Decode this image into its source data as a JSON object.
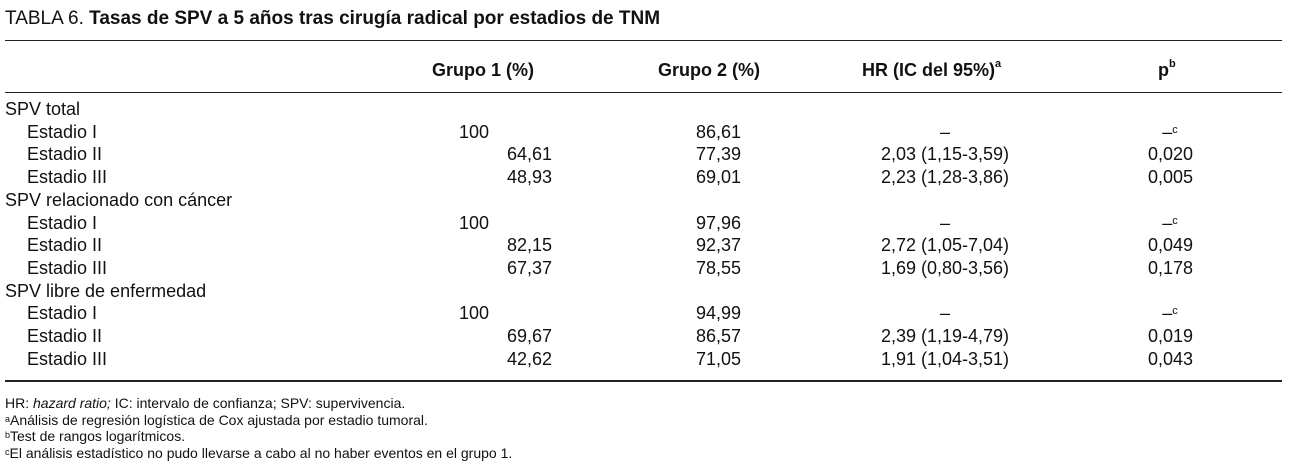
{
  "caption": {
    "label": "TABLA 6.",
    "title": "Tasas de SPV a 5 años tras cirugía radical por estadios de TNM"
  },
  "headers": {
    "grupo1": "Grupo 1 (%)",
    "grupo2": "Grupo 2 (%)",
    "hr": "HR (IC del 95%)",
    "hr_sup": "a",
    "p": "p",
    "p_sup": "b"
  },
  "groups": [
    {
      "label": "SPV total",
      "rows": [
        {
          "stage": "Estadio I",
          "g1": "100",
          "g2": "86,61",
          "hr": "–",
          "p": "–",
          "p_sup": "c"
        },
        {
          "stage": "Estadio II",
          "g1": "64,61",
          "g2": "77,39",
          "hr": "2,03 (1,15-3,59)",
          "p": "0,020"
        },
        {
          "stage": "Estadio III",
          "g1": "48,93",
          "g2": "69,01",
          "hr": "2,23 (1,28-3,86)",
          "p": "0,005"
        }
      ]
    },
    {
      "label": "SPV relacionado con cáncer",
      "rows": [
        {
          "stage": "Estadio I",
          "g1": "100",
          "g2": "97,96",
          "hr": "–",
          "p": "–",
          "p_sup": "c"
        },
        {
          "stage": "Estadio II",
          "g1": "82,15",
          "g2": "92,37",
          "hr": "2,72 (1,05-7,04)",
          "p": "0,049"
        },
        {
          "stage": "Estadio III",
          "g1": "67,37",
          "g2": "78,55",
          "hr": "1,69 (0,80-3,56)",
          "p": "0,178"
        }
      ]
    },
    {
      "label": "SPV libre de enfermedad",
      "rows": [
        {
          "stage": "Estadio I",
          "g1": "100",
          "g2": "94,99",
          "hr": "–",
          "p": "–",
          "p_sup": "c"
        },
        {
          "stage": "Estadio II",
          "g1": "69,67",
          "g2": "86,57",
          "hr": "2,39 (1,19-4,79)",
          "p": "0,019"
        },
        {
          "stage": "Estadio III",
          "g1": "42,62",
          "g2": "71,05",
          "hr": "1,91 (1,04-3,51)",
          "p": "0,043"
        }
      ]
    }
  ],
  "footnotes": {
    "abbr_hr": "HR: ",
    "abbr_hr_term": "hazard ratio;",
    "abbr_rest": " IC: intervalo de confianza; SPV: supervivencia.",
    "a_mark": "a",
    "a_text": "Análisis de regresión logística de Cox ajustada por estadio tumoral.",
    "b_mark": "b",
    "b_text": "Test de rangos logarítmicos.",
    "c_mark": "c",
    "c_text": "El análisis estadístico no pudo llevarse a cabo al no haber eventos en el grupo 1."
  }
}
